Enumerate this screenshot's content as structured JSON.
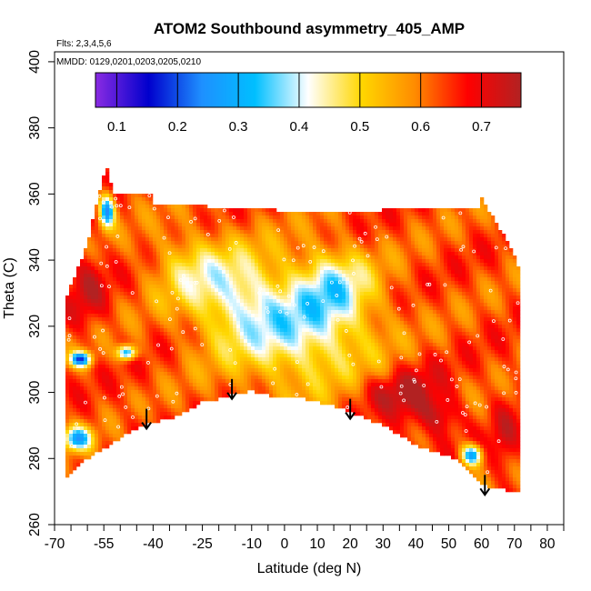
{
  "chart_data": {
    "type": "heatmap",
    "title": "ATOM2 Southbound asymmetry_405_AMP",
    "subtitle_flights": "Flts: 2,3,4,5,6",
    "subtitle_dates": "MMDD: 0129,0201,0203,0205,0210",
    "xlabel": "Latitude (deg N)",
    "ylabel": "Theta (C)",
    "xlim": [
      -70,
      85
    ],
    "ylim": [
      260,
      403
    ],
    "x_major_ticks": [
      -70,
      -55,
      -40,
      -25,
      -10,
      0,
      10,
      20,
      30,
      40,
      50,
      60,
      70,
      80
    ],
    "x_minor_ticks": [
      -65,
      -60,
      -50,
      -45,
      -35,
      -30,
      -20,
      -15,
      -5,
      5,
      15,
      25,
      35,
      45,
      55,
      65,
      75,
      85
    ],
    "x_tick_labels": [
      "-70",
      "-55",
      "-40",
      "-25",
      "-10",
      "0",
      "10",
      "20",
      "30",
      "40",
      "50",
      "60",
      "70",
      "80"
    ],
    "y_ticks": [
      260,
      280,
      300,
      320,
      340,
      360,
      380,
      400
    ],
    "y_tick_labels": [
      "260",
      "280",
      "300",
      "320",
      "340",
      "360",
      "380",
      "400"
    ],
    "colorbar": {
      "min": 0.065,
      "max": 0.765,
      "ticks": [
        0.1,
        0.2,
        0.3,
        0.4,
        0.5,
        0.6,
        0.7
      ],
      "tick_labels": [
        "0.1",
        "0.2",
        "0.3",
        "0.4",
        "0.5",
        "0.6",
        "0.7"
      ],
      "colors": [
        "#8a2be2",
        "#0000cd",
        "#1e90ff",
        "#00bfff",
        "#ffffff",
        "#ffd700",
        "#ff8c00",
        "#ff0000",
        "#b22222"
      ]
    },
    "domain_outline": {
      "lat": [
        -67,
        -67,
        -60,
        -55.5,
        -54,
        -52,
        -40,
        -40,
        -23,
        -23,
        -2,
        -2,
        30,
        30,
        60,
        60,
        70.5,
        72,
        72,
        70,
        67,
        62,
        58,
        52,
        45,
        40,
        35,
        30,
        25,
        20,
        15,
        10,
        5,
        0,
        -5,
        -10,
        -15,
        -20,
        -25,
        -30,
        -35,
        -40,
        -45,
        -50,
        -55,
        -60,
        -64,
        -67
      ],
      "theta": [
        276,
        327,
        345,
        364,
        368,
        360,
        360,
        357,
        357,
        356,
        356,
        355,
        355,
        356,
        356,
        359,
        341,
        335,
        270,
        270,
        270.5,
        271,
        274,
        280,
        282,
        284,
        287,
        290,
        292,
        294,
        296,
        297,
        298.5,
        299,
        299,
        300.5,
        299.5,
        298,
        297,
        294,
        292,
        291,
        289,
        286,
        283,
        280,
        276,
        274
      ]
    },
    "base_value": 0.63,
    "features": [
      {
        "lat": 5,
        "theta": 318,
        "sx": 16,
        "sy": 12,
        "value": 0.42
      },
      {
        "lat": -15,
        "theta": 330,
        "sx": 10,
        "sy": 10,
        "value": 0.47
      },
      {
        "lat": 15,
        "theta": 333,
        "sx": 8,
        "sy": 8,
        "value": 0.46
      },
      {
        "lat": -30,
        "theta": 338,
        "sx": 8,
        "sy": 8,
        "value": 0.52
      },
      {
        "lat": -54,
        "theta": 355,
        "sx": 1.6,
        "sy": 3.5,
        "value": 0.26
      },
      {
        "lat": -48,
        "theta": 312,
        "sx": 2,
        "sy": 1.5,
        "value": 0.28
      },
      {
        "lat": -62,
        "theta": 310,
        "sx": 2.2,
        "sy": 1.6,
        "value": 0.22
      },
      {
        "lat": -63,
        "theta": 286,
        "sx": 3,
        "sy": 2.5,
        "value": 0.3
      },
      {
        "lat": 57,
        "theta": 281,
        "sx": 2.2,
        "sy": 2.2,
        "value": 0.27
      },
      {
        "lat": -60,
        "theta": 332,
        "sx": 4,
        "sy": 8,
        "value": 0.72
      },
      {
        "lat": 40,
        "theta": 298,
        "sx": 6,
        "sy": 8,
        "value": 0.72
      },
      {
        "lat": 48,
        "theta": 293,
        "sx": 4,
        "sy": 4,
        "value": 0.73
      },
      {
        "lat": 67,
        "theta": 285,
        "sx": 3,
        "sy": 10,
        "value": 0.7
      },
      {
        "lat": 30,
        "theta": 300,
        "sx": 7,
        "sy": 4,
        "value": 0.7
      },
      {
        "lat": -44,
        "theta": 290,
        "sx": 4,
        "sy": 4,
        "value": 0.66
      }
    ],
    "arrows": [
      {
        "lat": -42,
        "theta": 289
      },
      {
        "lat": -16,
        "theta": 298
      },
      {
        "lat": 20,
        "theta": 292
      },
      {
        "lat": 61,
        "theta": 269
      }
    ]
  }
}
